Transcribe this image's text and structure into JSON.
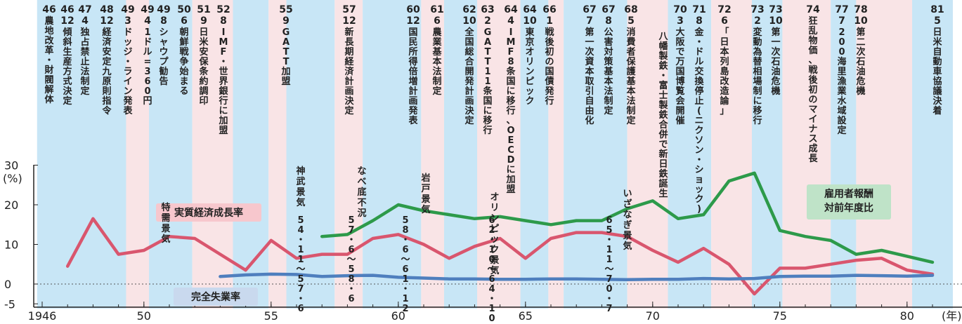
{
  "chart_data": {
    "type": "line",
    "x_tick_labels": [
      "1946",
      "50",
      "55",
      "60",
      "65",
      "70",
      "75",
      "80"
    ],
    "x_unit": "(年)",
    "y_unit": "(%)",
    "y_ticks": [
      30,
      20,
      10,
      0,
      -5
    ],
    "ylim": [
      -5,
      30
    ],
    "xlim": [
      1945.8,
      1981.8
    ],
    "series": [
      {
        "name": "実質経済成長率",
        "color": "#d9566e",
        "points": [
          [
            1947,
            4.5
          ],
          [
            1948,
            16.5
          ],
          [
            1949,
            7.5
          ],
          [
            1950,
            8.5
          ],
          [
            1951,
            12
          ],
          [
            1952,
            11.5
          ],
          [
            1953,
            7.5
          ],
          [
            1954,
            3.5
          ],
          [
            1955,
            11
          ],
          [
            1956,
            6.5
          ],
          [
            1957,
            7.5
          ],
          [
            1958,
            7.5
          ],
          [
            1959,
            11.5
          ],
          [
            1960,
            12.5
          ],
          [
            1961,
            10
          ],
          [
            1962,
            6.5
          ],
          [
            1963,
            9.5
          ],
          [
            1964,
            11.5
          ],
          [
            1965,
            6.5
          ],
          [
            1966,
            11.5
          ],
          [
            1967,
            13
          ],
          [
            1968,
            13
          ],
          [
            1969,
            12
          ],
          [
            1970,
            8.5
          ],
          [
            1971,
            5.5
          ],
          [
            1972,
            9
          ],
          [
            1973,
            5
          ],
          [
            1974,
            -2.5
          ],
          [
            1975,
            4
          ],
          [
            1976,
            4
          ],
          [
            1977,
            5
          ],
          [
            1978,
            6
          ],
          [
            1979,
            6.5
          ],
          [
            1980,
            3.5
          ],
          [
            1981,
            2.5
          ]
        ]
      },
      {
        "name": "雇用者報酬対前年度比",
        "color": "#2d9a4a",
        "points": [
          [
            1957,
            12
          ],
          [
            1958,
            12.5
          ],
          [
            1959,
            16
          ],
          [
            1960,
            20
          ],
          [
            1961,
            18.5
          ],
          [
            1962,
            17.5
          ],
          [
            1963,
            16.5
          ],
          [
            1964,
            17
          ],
          [
            1965,
            16
          ],
          [
            1966,
            15
          ],
          [
            1967,
            16
          ],
          [
            1968,
            16
          ],
          [
            1969,
            19
          ],
          [
            1970,
            21
          ],
          [
            1971,
            16.5
          ],
          [
            1972,
            17.5
          ],
          [
            1973,
            26
          ],
          [
            1974,
            28
          ],
          [
            1975,
            13.5
          ],
          [
            1976,
            12
          ],
          [
            1977,
            11
          ],
          [
            1978,
            7.5
          ],
          [
            1979,
            8.5
          ],
          [
            1980,
            7
          ],
          [
            1981,
            5.5
          ]
        ]
      },
      {
        "name": "完全失業率",
        "color": "#4f7fbe",
        "points": [
          [
            1953,
            1.9
          ],
          [
            1954,
            2.3
          ],
          [
            1955,
            2.5
          ],
          [
            1956,
            2.4
          ],
          [
            1957,
            1.9
          ],
          [
            1958,
            2.1
          ],
          [
            1959,
            2.2
          ],
          [
            1960,
            1.7
          ],
          [
            1961,
            1.5
          ],
          [
            1962,
            1.3
          ],
          [
            1963,
            1.3
          ],
          [
            1964,
            1.2
          ],
          [
            1965,
            1.2
          ],
          [
            1966,
            1.3
          ],
          [
            1967,
            1.3
          ],
          [
            1968,
            1.2
          ],
          [
            1969,
            1.1
          ],
          [
            1970,
            1.2
          ],
          [
            1971,
            1.2
          ],
          [
            1972,
            1.4
          ],
          [
            1973,
            1.3
          ],
          [
            1974,
            1.4
          ],
          [
            1975,
            1.9
          ],
          [
            1976,
            2
          ],
          [
            1977,
            2
          ],
          [
            1978,
            2.2
          ],
          [
            1979,
            2.1
          ],
          [
            1980,
            2
          ],
          [
            1981,
            2.2
          ]
        ]
      }
    ],
    "series_labels": [
      "実質経済成長率",
      "雇用者報酬\n対前年度比",
      "完全失業率"
    ],
    "events": [
      {
        "date": "46",
        "text": "農地改革・財閥解体"
      },
      {
        "date": "46・12",
        "text": "傾斜生産方式決定"
      },
      {
        "date": "47・4",
        "text": "独占禁止法制定"
      },
      {
        "date": "48・12",
        "text": "経済安定九原則指令"
      },
      {
        "date": "49・3",
        "text": "ドッジ・ライン発表"
      },
      {
        "date": "49・4",
        "text": "1ドル=360円"
      },
      {
        "date": "49・8",
        "text": "シャウプ勧告"
      },
      {
        "date": "50・6",
        "text": "朝鮮戦争始まる"
      },
      {
        "date": "51・9",
        "text": "日米安保条約調印"
      },
      {
        "date": "52・8",
        "text": "IMF・世界銀行に加盟"
      },
      {
        "date": "55・9",
        "text": "GATT加盟"
      },
      {
        "date": "57・12",
        "text": "新長期経済計画決定"
      },
      {
        "date": "60・12",
        "text": "国民所得倍増計画発表"
      },
      {
        "date": "61・6",
        "text": "農業基本法制定"
      },
      {
        "date": "62・10",
        "text": "全国総合開発計画決定"
      },
      {
        "date": "63・2",
        "text": "GATT11条国に移行"
      },
      {
        "date": "64・4",
        "text": "IMF8条国に移行、OECDに加盟"
      },
      {
        "date": "64・10",
        "text": "東京オリンピック"
      },
      {
        "date": "66・1",
        "text": "戦後初の国債発行"
      },
      {
        "date": "67・7",
        "text": "第一次資本取引自由化"
      },
      {
        "date": "67・8",
        "text": "公害対策基本法制定"
      },
      {
        "date": "68・5",
        "text": "消費者保護基本法制定"
      },
      {
        "date": "",
        "text": "八幡製鉄・富士製鉄合併で新日鉄誕生"
      },
      {
        "date": "70・3",
        "text": "大阪で万国博覧会開催"
      },
      {
        "date": "71・8",
        "text": "金・ドル交換停止(ニクソン・ショック)"
      },
      {
        "date": "72・6",
        "text": "「日本列島改造論」"
      },
      {
        "date": "73・2",
        "text": "変動為替相場制に移行"
      },
      {
        "date": "73・10",
        "text": "第一次石油危機"
      },
      {
        "date": "74",
        "text": "狂乱物価、戦後初のマイナス成長"
      },
      {
        "date": "77・7",
        "text": "200海里漁業水域設定"
      },
      {
        "date": "78・10",
        "text": "第二次石油危機"
      },
      {
        "date": "81・5",
        "text": "日米自動車協議決着"
      }
    ],
    "booms": [
      {
        "name": "特需景気",
        "period": ""
      },
      {
        "name": "神武景気",
        "period": "54・11〜57・6"
      },
      {
        "name": "なべ底不況",
        "period": "57・6〜58・6"
      },
      {
        "name": "岩戸景気",
        "period": "58・6〜61・12"
      },
      {
        "name": "オリンピック景気",
        "period": "62・10〜64・10"
      },
      {
        "name": "いざなぎ景気",
        "period": "65・11〜70・7"
      }
    ]
  },
  "colors": {
    "pink_band": "#f9e4e6",
    "blue_band": "#c8e6f6"
  }
}
